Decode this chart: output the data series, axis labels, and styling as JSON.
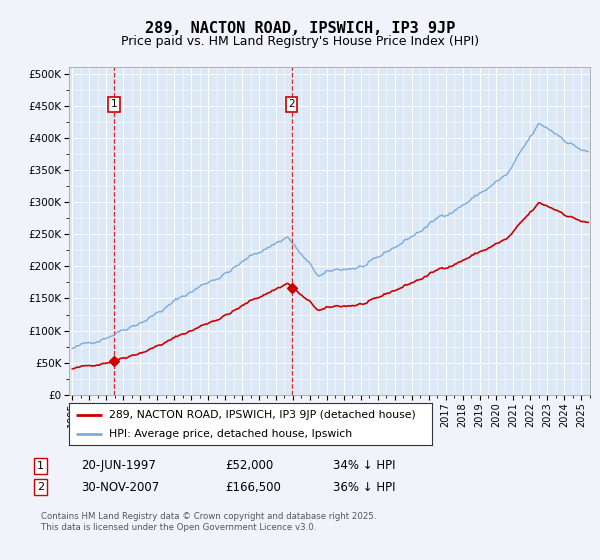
{
  "title": "289, NACTON ROAD, IPSWICH, IP3 9JP",
  "subtitle": "Price paid vs. HM Land Registry's House Price Index (HPI)",
  "ylabel_ticks": [
    "£0",
    "£50K",
    "£100K",
    "£150K",
    "£200K",
    "£250K",
    "£300K",
    "£350K",
    "£400K",
    "£450K",
    "£500K"
  ],
  "ytick_values": [
    0,
    50000,
    100000,
    150000,
    200000,
    250000,
    300000,
    350000,
    400000,
    450000,
    500000
  ],
  "ylim": [
    0,
    510000
  ],
  "xlim_start": 1994.8,
  "xlim_end": 2025.5,
  "xticks": [
    1995,
    1996,
    1997,
    1998,
    1999,
    2000,
    2001,
    2002,
    2003,
    2004,
    2005,
    2006,
    2007,
    2008,
    2009,
    2010,
    2011,
    2012,
    2013,
    2014,
    2015,
    2016,
    2017,
    2018,
    2019,
    2020,
    2021,
    2022,
    2023,
    2024,
    2025
  ],
  "transaction1_x": 1997.47,
  "transaction1_y": 52000,
  "transaction2_x": 2007.92,
  "transaction2_y": 166500,
  "red_line_color": "#cc0000",
  "blue_line_color": "#7aabdb",
  "background_color": "#f0f4fa",
  "plot_bg_color": "#dce8f5",
  "grid_color": "#ffffff",
  "legend_label_red": "289, NACTON ROAD, IPSWICH, IP3 9JP (detached house)",
  "legend_label_blue": "HPI: Average price, detached house, Ipswich",
  "annotation1_date": "20-JUN-1997",
  "annotation1_price": "£52,000",
  "annotation1_hpi": "34% ↓ HPI",
  "annotation2_date": "30-NOV-2007",
  "annotation2_price": "£166,500",
  "annotation2_hpi": "36% ↓ HPI",
  "footer": "Contains HM Land Registry data © Crown copyright and database right 2025.\nThis data is licensed under the Open Government Licence v3.0."
}
